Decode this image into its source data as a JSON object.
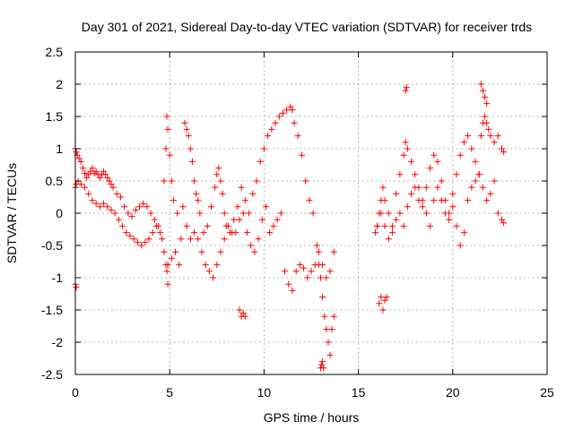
{
  "chart_data": {
    "type": "scatter",
    "title": "Day 301 of 2021, Sidereal Day-to-day VTEC variation (SDTVAR) for receiver trds",
    "xlabel": "GPS time / hours",
    "ylabel": "SDTVAR / TECUs",
    "xlim": [
      0,
      25
    ],
    "ylim": [
      -2.5,
      2.5
    ],
    "xticks": [
      0,
      5,
      10,
      15,
      20,
      25
    ],
    "yticks": [
      -2.5,
      -2,
      -1.5,
      -1,
      -0.5,
      0,
      0.5,
      1,
      1.5,
      2,
      2.5
    ],
    "grid": true,
    "marker": "+",
    "series": [
      {
        "name": "SDTVAR",
        "color": "#ff0000",
        "x": [
          0.0,
          0.05,
          0.1,
          0.2,
          0.3,
          0.4,
          0.5,
          0.6,
          0.7,
          0.8,
          0.9,
          1.0,
          1.1,
          1.2,
          1.3,
          1.4,
          1.5,
          1.6,
          1.7,
          1.8,
          1.9,
          2.0,
          2.2,
          2.4,
          2.6,
          2.8,
          3.0,
          3.2,
          3.4,
          3.6,
          3.8,
          4.0,
          4.2,
          4.4,
          4.6,
          4.7,
          4.8,
          4.85,
          4.9,
          5.0,
          5.1,
          5.2,
          5.4,
          5.6,
          5.8,
          5.9,
          6.0,
          6.1,
          6.2,
          6.3,
          6.4,
          6.5,
          6.6,
          6.8,
          7.0,
          7.2,
          7.4,
          7.5,
          7.6,
          7.7,
          7.8,
          7.9,
          8.0,
          8.2,
          8.4,
          8.6,
          8.8,
          9.0,
          9.2,
          9.4,
          9.6,
          9.8,
          10.0,
          10.2,
          10.4,
          10.6,
          10.8,
          11.0,
          11.2,
          11.4,
          11.5,
          11.6,
          11.8,
          12.0,
          12.2,
          12.4,
          12.6,
          12.8,
          12.9,
          13.0,
          13.1,
          13.2,
          13.3,
          13.4,
          13.5,
          13.6,
          13.7,
          15.9,
          16.0,
          16.1,
          16.2,
          16.3,
          16.4,
          16.6,
          16.8,
          17.0,
          17.2,
          17.4,
          17.5,
          17.6,
          17.8,
          18.0,
          18.2,
          18.4,
          18.6,
          18.8,
          19.0,
          19.2,
          19.4,
          19.6,
          19.8,
          20.0,
          20.2,
          20.4,
          20.6,
          20.8,
          21.0,
          21.2,
          21.4,
          21.5,
          21.6,
          21.7,
          21.8,
          21.9,
          22.0,
          22.2,
          22.4,
          22.6,
          22.7,
          0.0,
          0.05,
          0.15,
          0.3,
          0.5,
          0.7,
          0.9,
          1.1,
          1.3,
          1.5,
          1.7,
          1.9,
          2.1,
          2.3,
          2.5,
          2.7,
          2.9,
          3.1,
          3.3,
          3.5,
          3.7,
          3.9,
          4.1,
          4.3,
          4.5,
          4.7,
          4.9,
          5.1,
          5.3,
          5.5,
          5.7,
          5.9,
          6.1,
          6.3,
          6.5,
          6.7,
          6.9,
          7.1,
          7.3,
          7.5,
          7.7,
          7.9,
          8.1,
          8.3,
          8.5,
          8.7,
          8.9,
          9.1,
          9.3,
          9.5,
          9.7,
          9.9,
          10.1,
          10.3,
          10.5,
          10.7,
          10.9,
          11.1,
          11.3,
          11.5,
          11.7,
          11.9,
          12.1,
          12.3,
          12.5,
          12.7,
          12.9,
          13.1,
          13.3,
          13.5,
          13.7,
          16.0,
          16.2,
          16.4,
          16.6,
          16.8,
          17.0,
          17.2,
          17.4,
          17.6,
          17.8,
          18.0,
          18.2,
          18.4,
          18.6,
          18.8,
          19.0,
          19.2,
          19.4,
          19.6,
          19.8,
          20.0,
          20.2,
          20.4,
          20.6,
          20.8,
          21.0,
          21.2,
          21.4,
          21.6,
          21.8,
          22.0,
          22.2,
          22.4,
          22.6,
          22.7,
          0.0,
          0.05,
          4.8,
          4.85,
          4.9,
          8.7,
          8.8,
          8.9,
          9.0,
          16.1,
          16.2,
          16.3,
          16.4,
          16.5,
          17.5,
          17.55,
          21.5,
          21.6,
          21.7,
          21.8,
          13.0,
          13.05,
          13.1,
          13.15
        ],
        "y": [
          1.0,
          0.95,
          0.9,
          0.85,
          0.8,
          0.7,
          0.62,
          0.55,
          0.6,
          0.65,
          0.7,
          0.62,
          0.65,
          0.6,
          0.55,
          0.6,
          0.65,
          0.6,
          0.55,
          0.5,
          0.45,
          0.4,
          0.3,
          0.25,
          0.1,
          0.0,
          -0.05,
          0.05,
          0.1,
          0.15,
          0.1,
          0.0,
          -0.1,
          -0.2,
          -0.4,
          0.5,
          1.0,
          1.5,
          1.3,
          0.9,
          0.5,
          0.2,
          0.0,
          -0.4,
          1.4,
          1.3,
          1.2,
          1.0,
          0.8,
          0.5,
          0.3,
          0.2,
          0.0,
          -0.3,
          -0.2,
          0.1,
          0.4,
          0.6,
          0.7,
          0.5,
          0.3,
          0.0,
          -0.2,
          -0.3,
          -0.1,
          0.1,
          0.4,
          0.2,
          0.0,
          0.3,
          0.5,
          0.8,
          1.0,
          1.2,
          1.3,
          1.4,
          1.5,
          1.55,
          1.6,
          1.65,
          1.6,
          1.4,
          1.2,
          0.9,
          0.5,
          0.2,
          0.0,
          -0.5,
          -0.8,
          -1.0,
          -1.3,
          -1.6,
          -1.8,
          -2.0,
          -2.2,
          -1.8,
          -1.6,
          -0.3,
          -0.2,
          0.0,
          0.2,
          0.4,
          0.2,
          0.0,
          -0.2,
          0.3,
          0.6,
          0.9,
          1.1,
          1.0,
          0.8,
          0.6,
          0.4,
          0.2,
          0.4,
          0.7,
          0.9,
          0.8,
          0.5,
          0.2,
          0.0,
          0.3,
          0.6,
          0.9,
          1.1,
          1.2,
          1.0,
          0.8,
          0.6,
          1.2,
          1.4,
          1.5,
          1.4,
          1.3,
          1.2,
          1.1,
          1.2,
          1.0,
          0.95,
          0.4,
          0.45,
          0.5,
          0.45,
          0.4,
          0.3,
          0.2,
          0.15,
          0.1,
          0.15,
          0.1,
          0.05,
          0.0,
          -0.1,
          -0.2,
          -0.3,
          -0.35,
          -0.4,
          -0.45,
          -0.5,
          -0.45,
          -0.4,
          -0.3,
          -0.2,
          -0.3,
          -0.6,
          -0.8,
          -0.7,
          -0.6,
          -0.8,
          0.1,
          -0.2,
          -0.4,
          -0.3,
          -0.4,
          -0.6,
          -0.8,
          -0.9,
          -1.0,
          -0.8,
          -0.6,
          -0.4,
          -0.2,
          -0.3,
          -0.3,
          -0.1,
          0.0,
          -0.3,
          -0.5,
          -0.6,
          -0.4,
          -0.1,
          0.1,
          -0.3,
          -0.2,
          -0.1,
          0.0,
          -0.9,
          -1.1,
          -1.2,
          -0.9,
          -0.8,
          -0.85,
          -1.0,
          -0.9,
          -0.8,
          -0.6,
          -0.8,
          -1.0,
          -0.9,
          -0.6,
          -0.2,
          0.0,
          -0.2,
          -0.4,
          -0.3,
          -0.1,
          0.0,
          -0.2,
          0.1,
          0.3,
          0.4,
          0.2,
          0.1,
          0.0,
          -0.2,
          0.2,
          0.4,
          0.2,
          0.0,
          -0.1,
          0.1,
          -0.2,
          -0.5,
          -0.3,
          0.2,
          0.4,
          0.5,
          0.6,
          0.4,
          0.2,
          0.3,
          0.5,
          0.0,
          -0.1,
          -0.15,
          -1.1,
          -1.15,
          -0.8,
          -0.9,
          -1.1,
          -1.5,
          -1.6,
          -1.55,
          -1.6,
          -1.4,
          -1.3,
          -1.5,
          -1.35,
          -1.3,
          1.9,
          1.95,
          2.0,
          1.9,
          1.8,
          1.7,
          -2.4,
          -2.35,
          -2.3,
          -2.4
        ]
      }
    ]
  }
}
